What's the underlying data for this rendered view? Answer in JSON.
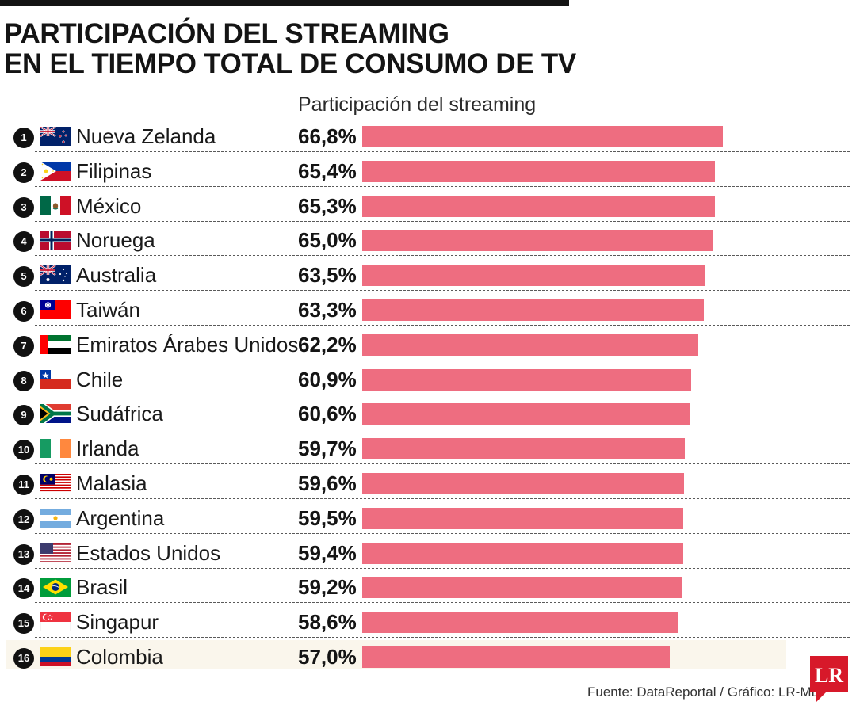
{
  "title_line1": "PARTICIPACIÓN DEL STREAMING",
  "title_line2": "EN EL TIEMPO TOTAL DE CONSUMO DE TV",
  "column_header": "Participación del streaming",
  "source": "Fuente: DataReportal / Gráfico: LR-MB",
  "logo_text": "LR",
  "colors": {
    "bar": "#ee6d80",
    "highlight_row": "#faf6ec",
    "logo": "#d7192a"
  },
  "chart_data": {
    "type": "bar",
    "orientation": "horizontal",
    "xlim": [
      0,
      100
    ],
    "highlight": "Colombia",
    "categories": [
      "Nueva Zelanda",
      "Filipinas",
      "México",
      "Noruega",
      "Australia",
      "Taiwán",
      "Emiratos Árabes Unidos",
      "Chile",
      "Sudáfrica",
      "Irlanda",
      "Malasia",
      "Argentina",
      "Estados Unidos",
      "Brasil",
      "Singapur",
      "Colombia"
    ],
    "values": [
      66.8,
      65.4,
      65.3,
      65.0,
      63.5,
      63.3,
      62.2,
      60.9,
      60.6,
      59.7,
      59.6,
      59.5,
      59.4,
      59.2,
      58.6,
      57.0
    ],
    "rows": [
      {
        "rank": "1",
        "country": "Nueva Zelanda",
        "label": "66,8%",
        "value": 66.8,
        "flag": "new-zealand-flag"
      },
      {
        "rank": "2",
        "country": "Filipinas",
        "label": "65,4%",
        "value": 65.4,
        "flag": "philippines-flag"
      },
      {
        "rank": "3",
        "country": "México",
        "label": "65,3%",
        "value": 65.3,
        "flag": "mexico-flag"
      },
      {
        "rank": "4",
        "country": "Noruega",
        "label": "65,0%",
        "value": 65.0,
        "flag": "norway-flag"
      },
      {
        "rank": "5",
        "country": "Australia",
        "label": "63,5%",
        "value": 63.5,
        "flag": "australia-flag"
      },
      {
        "rank": "6",
        "country": "Taiwán",
        "label": "63,3%",
        "value": 63.3,
        "flag": "taiwan-flag"
      },
      {
        "rank": "7",
        "country": "Emiratos Árabes Unidos",
        "label": "62,2%",
        "value": 62.2,
        "flag": "uae-flag"
      },
      {
        "rank": "8",
        "country": "Chile",
        "label": "60,9%",
        "value": 60.9,
        "flag": "chile-flag"
      },
      {
        "rank": "9",
        "country": "Sudáfrica",
        "label": "60,6%",
        "value": 60.6,
        "flag": "south-africa-flag"
      },
      {
        "rank": "10",
        "country": "Irlanda",
        "label": "59,7%",
        "value": 59.7,
        "flag": "ireland-flag"
      },
      {
        "rank": "11",
        "country": "Malasia",
        "label": "59,6%",
        "value": 59.6,
        "flag": "malaysia-flag"
      },
      {
        "rank": "12",
        "country": "Argentina",
        "label": "59,5%",
        "value": 59.5,
        "flag": "argentina-flag"
      },
      {
        "rank": "13",
        "country": "Estados Unidos",
        "label": "59,4%",
        "value": 59.4,
        "flag": "usa-flag"
      },
      {
        "rank": "14",
        "country": "Brasil",
        "label": "59,2%",
        "value": 59.2,
        "flag": "brazil-flag"
      },
      {
        "rank": "15",
        "country": "Singapur",
        "label": "58,6%",
        "value": 58.6,
        "flag": "singapore-flag"
      },
      {
        "rank": "16",
        "country": "Colombia",
        "label": "57,0%",
        "value": 57.0,
        "flag": "colombia-flag"
      }
    ]
  }
}
